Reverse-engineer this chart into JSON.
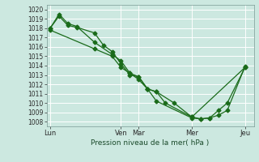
{
  "bg_color": "#cce8e0",
  "grid_color": "#ffffff",
  "line_color": "#1a6b1a",
  "xlabel": "Pression niveau de la mer( hPa )",
  "ylim": [
    1007.5,
    1020.5
  ],
  "yticks": [
    1008,
    1009,
    1010,
    1011,
    1012,
    1013,
    1014,
    1015,
    1016,
    1017,
    1018,
    1019,
    1020
  ],
  "xtick_labels": [
    "Lun",
    "",
    "Ven",
    "Mar",
    "",
    "Mer",
    "",
    "Jeu"
  ],
  "xtick_positions": [
    0,
    2,
    4,
    5,
    6,
    8,
    10,
    11
  ],
  "vline_positions": [
    0,
    4,
    5,
    8,
    11
  ],
  "line1_x": [
    0,
    0.5,
    1.0,
    1.5,
    2.5,
    3.0,
    3.5,
    4.0,
    4.5,
    5.0,
    5.5,
    6.0,
    6.5,
    8.0,
    11.0
  ],
  "line1_y": [
    1018.0,
    1019.3,
    1018.3,
    1018.1,
    1017.5,
    1016.2,
    1015.5,
    1014.2,
    1013.0,
    1012.8,
    1011.5,
    1011.2,
    1010.0,
    1008.5,
    1013.8
  ],
  "line2_x": [
    0,
    0.5,
    1.0,
    1.5,
    2.5,
    3.5,
    4.0,
    4.5,
    5.0,
    5.5,
    6.0,
    7.0,
    8.0,
    8.5,
    9.0,
    9.5,
    10.0,
    11.0
  ],
  "line2_y": [
    1018.0,
    1019.5,
    1018.5,
    1018.2,
    1016.5,
    1015.2,
    1014.5,
    1013.2,
    1012.8,
    1011.5,
    1011.2,
    1010.0,
    1008.5,
    1008.3,
    1008.4,
    1009.2,
    1010.0,
    1013.8
  ],
  "line3_x": [
    0,
    2.5,
    3.5,
    4.0,
    4.5,
    5.0,
    5.5,
    6.0,
    8.0,
    8.5,
    9.0,
    9.5,
    10.0,
    11.0
  ],
  "line3_y": [
    1017.8,
    1015.8,
    1015.0,
    1013.8,
    1013.2,
    1012.5,
    1011.5,
    1010.2,
    1008.4,
    1008.3,
    1008.4,
    1008.7,
    1009.2,
    1013.9
  ]
}
